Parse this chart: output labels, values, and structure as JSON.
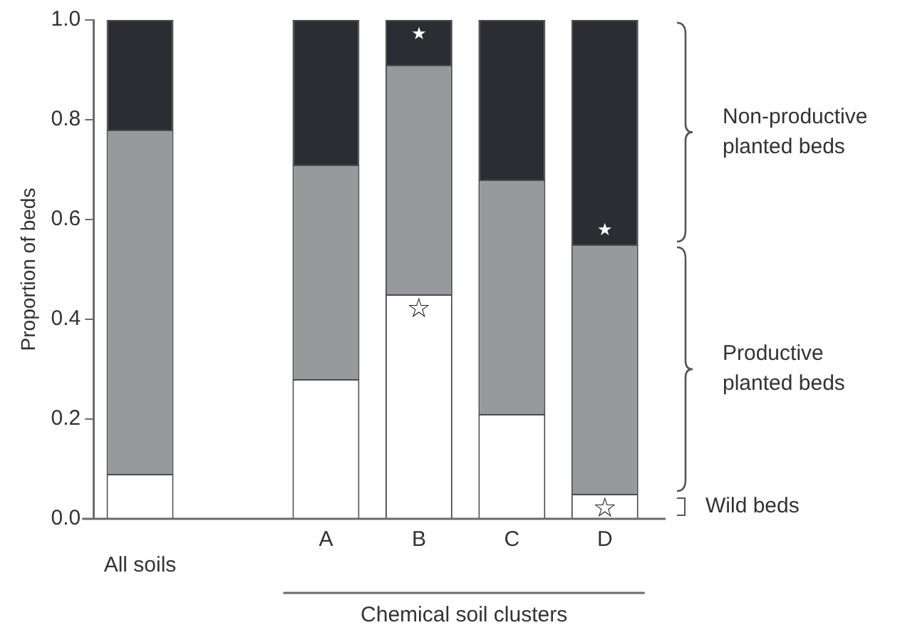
{
  "chart_data": {
    "type": "bar",
    "stacked": true,
    "ylabel": "Proportion of beds",
    "xlabel": "Chemical soil clusters",
    "categories": [
      "All soils",
      null,
      "A",
      "B",
      "C",
      "D"
    ],
    "series": [
      {
        "name": "Wild beds",
        "color": "#ffffff",
        "values": [
          0.09,
          null,
          0.28,
          0.45,
          0.21,
          0.05
        ]
      },
      {
        "name": "Productive planted beds",
        "color": "#98999b",
        "values": [
          0.69,
          null,
          0.43,
          0.46,
          0.47,
          0.5
        ]
      },
      {
        "name": "Non-productive planted beds",
        "color": "#2b2d32",
        "values": [
          0.22,
          null,
          0.29,
          0.09,
          0.32,
          0.45
        ]
      }
    ],
    "ylim": [
      0,
      1
    ],
    "yticks": [
      {
        "value": 0,
        "label": "0.0"
      },
      {
        "value": 0.2,
        "label": "0.2"
      },
      {
        "value": 0.4,
        "label": "0.4"
      },
      {
        "value": 0.6,
        "label": "0.6"
      },
      {
        "value": 0.8,
        "label": "0.8"
      },
      {
        "value": 1,
        "label": "1.0"
      }
    ],
    "grid": false,
    "legend": "right",
    "annotations": [
      {
        "text": "★",
        "x": "B",
        "y": 1.0
      },
      {
        "text": "☆",
        "x": "B",
        "y": 0.45
      },
      {
        "text": "★",
        "x": "D",
        "y": 0.55
      },
      {
        "text": "☆",
        "x": "D",
        "y": 0.05
      }
    ]
  }
}
